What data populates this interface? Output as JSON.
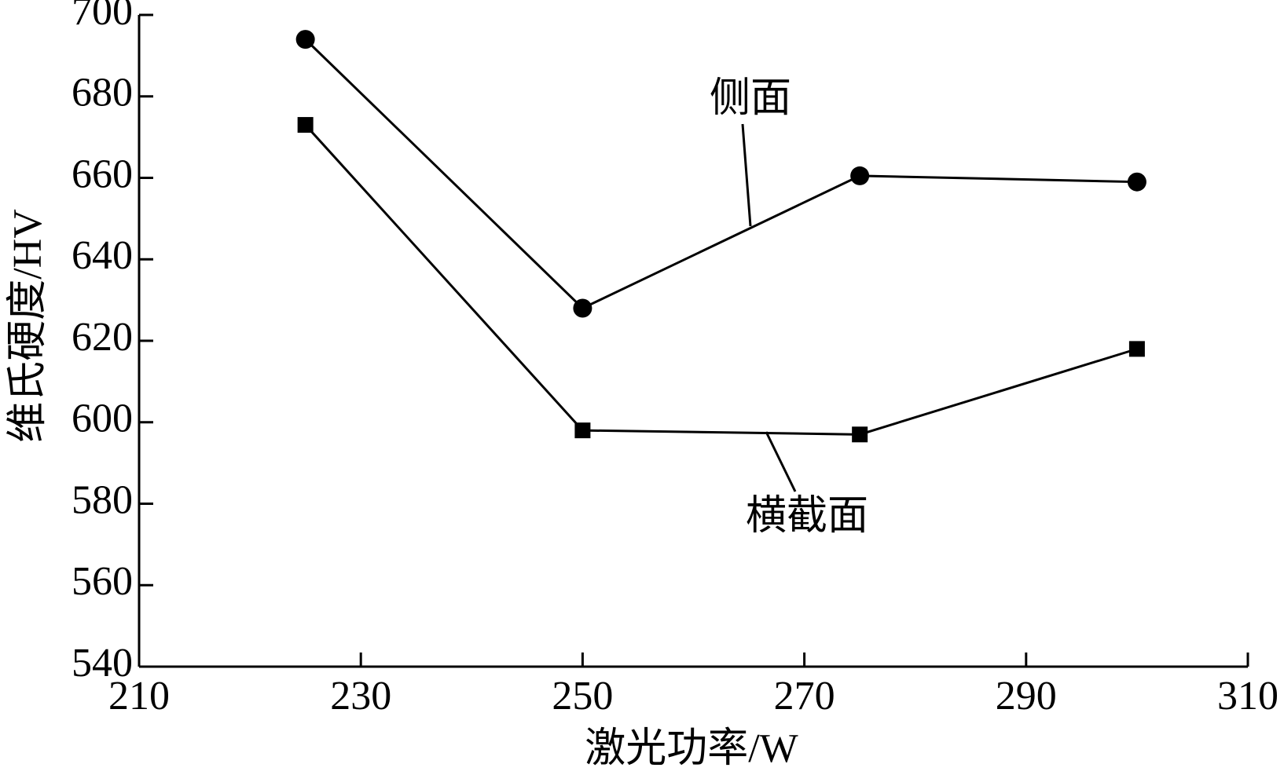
{
  "chart_data": {
    "type": "line",
    "x_label": "激光功率/W",
    "y_label": "维氏硬度/HV",
    "x": [
      225,
      250,
      275,
      300
    ],
    "series": [
      {
        "name": "侧面",
        "color": "#000000",
        "marker": "circle",
        "values": [
          694,
          628,
          660.5,
          659
        ]
      },
      {
        "name": "横截面",
        "color": "#000000",
        "marker": "square",
        "values": [
          673,
          598,
          597,
          618
        ]
      }
    ],
    "xlim": [
      210,
      310
    ],
    "xticks": [
      210,
      230,
      250,
      270,
      290,
      310
    ],
    "ylim": [
      540,
      700
    ],
    "yticks": [
      540,
      560,
      580,
      600,
      620,
      640,
      660,
      680,
      700
    ],
    "grid": false
  }
}
